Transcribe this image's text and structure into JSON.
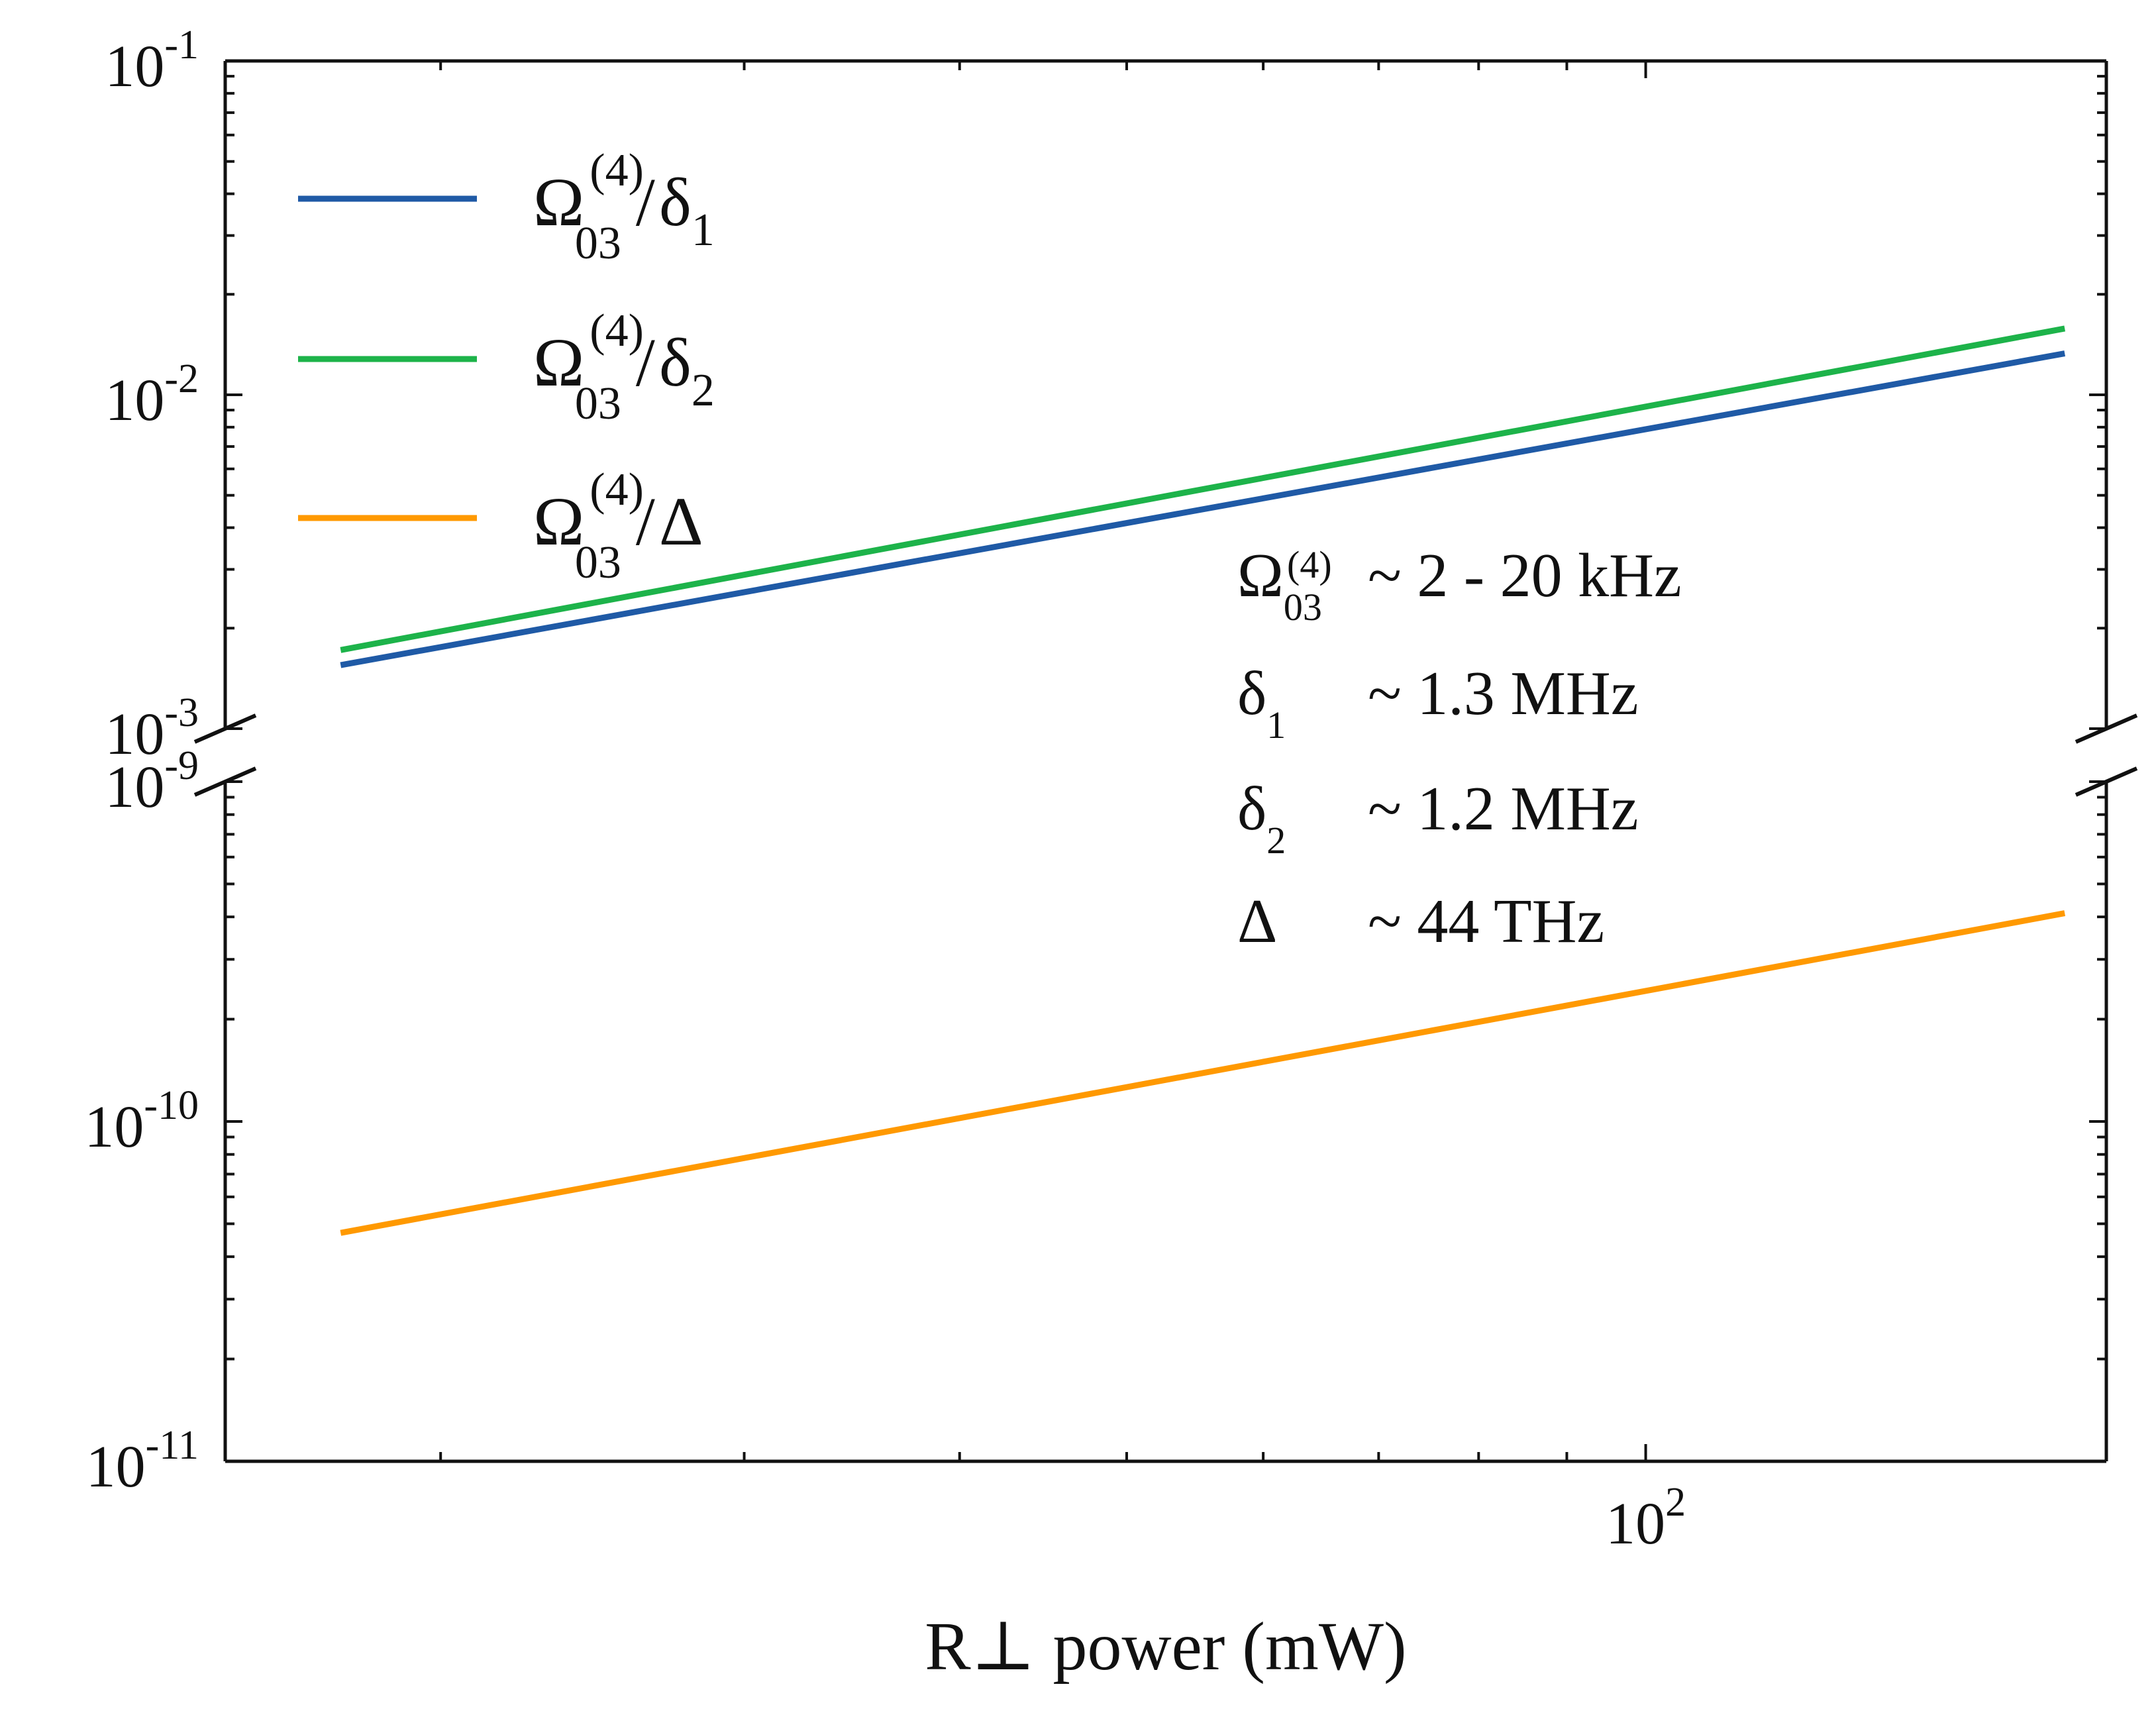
{
  "chart_data": {
    "type": "line",
    "xlabel": "R⊥ power (mW)",
    "ylabel": "",
    "x_scale": "log",
    "y_scale": "log",
    "xlim": [
      15,
      185
    ],
    "x_ticks": [
      {
        "value": 100,
        "base": "10",
        "exp": "2"
      }
    ],
    "y_broken_axis": true,
    "y_panels": [
      {
        "name": "upper",
        "ylim": [
          0.001,
          0.1
        ],
        "ticks": [
          {
            "value": 0.1,
            "base": "10",
            "exp": "-1"
          },
          {
            "value": 0.01,
            "base": "10",
            "exp": "-2"
          },
          {
            "value": 0.001,
            "base": "10",
            "exp": "-3"
          }
        ]
      },
      {
        "name": "lower",
        "ylim": [
          1e-11,
          1e-09
        ],
        "ticks": [
          {
            "value": 1e-09,
            "base": "10",
            "exp": "-9"
          },
          {
            "value": 1e-10,
            "base": "10",
            "exp": "-10"
          },
          {
            "value": 1e-11,
            "base": "10",
            "exp": "-11"
          }
        ]
      }
    ],
    "series": [
      {
        "name": "Ω03(4)/δ1",
        "panel": "upper",
        "color": "#1f5aa6",
        "x": [
          17.5,
          175
        ],
        "y": [
          0.00155,
          0.0133
        ],
        "legend": {
          "main": "Ω",
          "sup": "(4)",
          "sub": "03",
          "den": "δ",
          "den_sub": "1"
        }
      },
      {
        "name": "Ω03(4)/δ2",
        "panel": "upper",
        "color": "#1db34a",
        "x": [
          17.5,
          175
        ],
        "y": [
          0.00172,
          0.0158
        ],
        "legend": {
          "main": "Ω",
          "sup": "(4)",
          "sub": "03",
          "den": "δ",
          "den_sub": "2"
        }
      },
      {
        "name": "Ω03(4)/Δ",
        "panel": "lower",
        "color": "#ff9900",
        "x": [
          17.5,
          175
        ],
        "y": [
          4.7e-11,
          4.1e-10
        ],
        "legend": {
          "main": "Ω",
          "sup": "(4)",
          "sub": "03",
          "den": "Δ",
          "den_sub": ""
        }
      }
    ],
    "legend_position": "top-left",
    "annotations": [
      {
        "sym": "Ω",
        "sub": "03",
        "sup": "(4)",
        "text": "~ 2 - 20 kHz"
      },
      {
        "sym": "δ",
        "sub": "1",
        "sup": "",
        "text": "~ 1.3 MHz"
      },
      {
        "sym": "δ",
        "sub": "2",
        "sup": "",
        "text": "~ 1.2 MHz"
      },
      {
        "sym": "Δ",
        "sub": "",
        "sup": "",
        "text": "~ 44 THz"
      }
    ],
    "grid": false
  }
}
